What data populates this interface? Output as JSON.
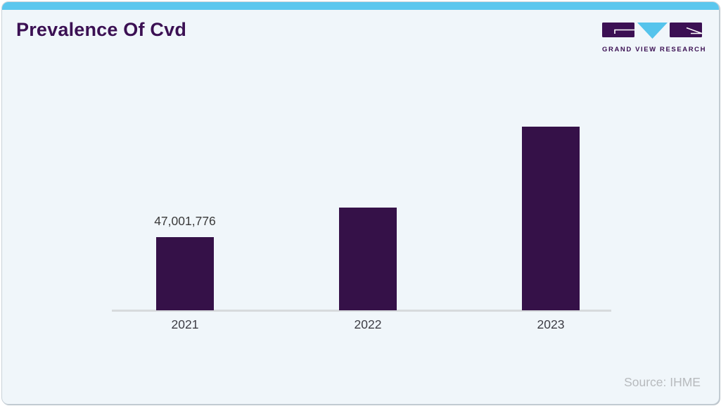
{
  "header": {
    "title": "Prevalence Of Cvd",
    "logo_text": "GRAND VIEW RESEARCH"
  },
  "footer": {
    "source": "Source: IHME"
  },
  "colors": {
    "accent_bar": "#5bc7ee",
    "card_background": "#f0f6fa",
    "title_text": "#3b1053",
    "bar_fill": "#351148",
    "logo_purple": "#3b1053",
    "logo_blue": "#55c4ec",
    "axis_line": "#d7dadd",
    "tick_label": "#3d3d44",
    "data_label": "#3a3a3a",
    "source_text": "#b7babd"
  },
  "chart_data": {
    "type": "bar",
    "title": "Prevalence Of Cvd",
    "categories": [
      "2021",
      "2022",
      "2023"
    ],
    "values": [
      47001776,
      66400000,
      118400000
    ],
    "data_labels": [
      "47,001,776",
      "",
      ""
    ],
    "xlabel": "",
    "ylabel": "",
    "grid": false,
    "legend": false,
    "bar_color": "#351148",
    "baseline_axis_only": true
  }
}
